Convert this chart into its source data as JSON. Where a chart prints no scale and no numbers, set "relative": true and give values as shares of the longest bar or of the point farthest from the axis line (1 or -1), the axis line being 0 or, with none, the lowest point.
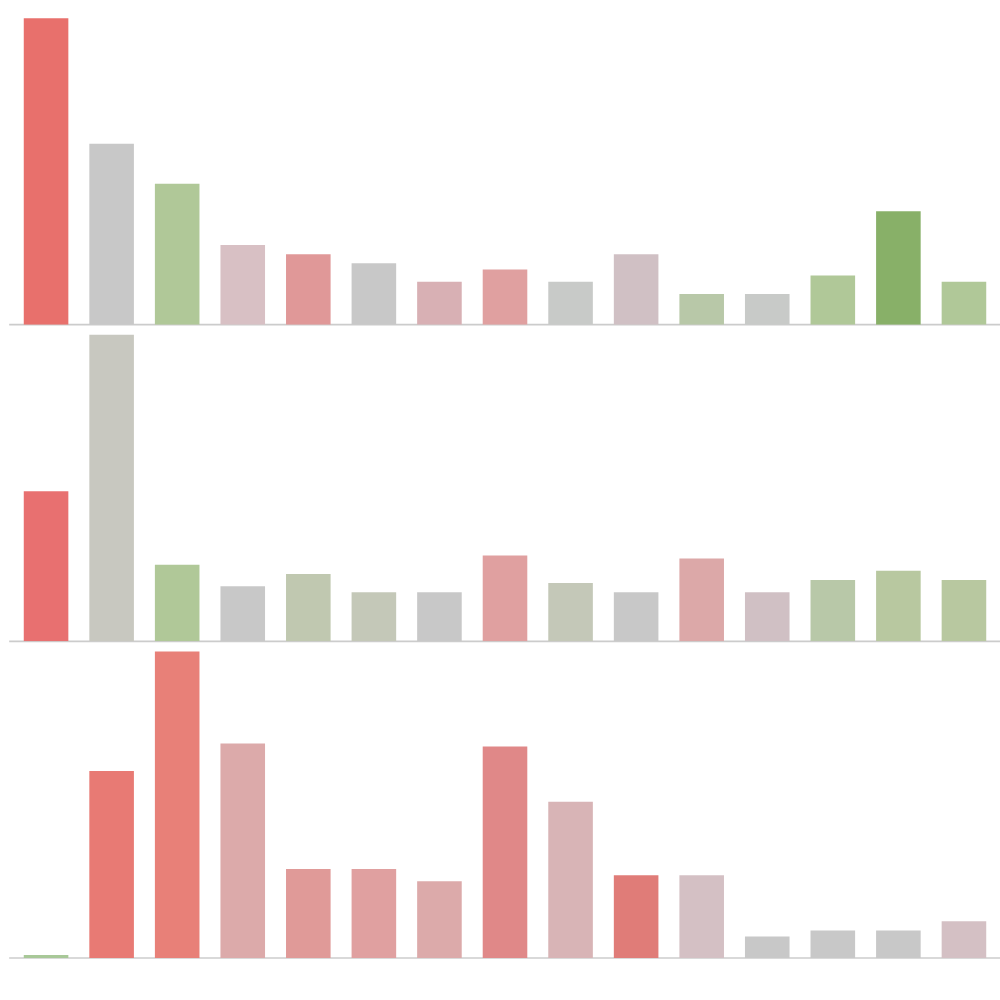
{
  "chart_data": [
    {
      "type": "bar",
      "relative": true,
      "categories": [
        null,
        null,
        null,
        null,
        null,
        null,
        null,
        null,
        null,
        null,
        null,
        null,
        null,
        null,
        null
      ],
      "values": [
        1,
        0.59,
        0.46,
        0.26,
        0.23,
        0.2,
        0.14,
        0.18,
        0.14,
        0.23,
        0.1,
        0.1,
        0.16,
        0.37,
        0.14
      ],
      "colors": [
        "#e8706c",
        "#c8c8c8",
        "#b0c898",
        "#d8c0c4",
        "#e09898",
        "#c8c8c8",
        "#d8b0b4",
        "#e0a0a0",
        "#c8cac8",
        "#d0c0c4",
        "#b8c8a8",
        "#c8cac8",
        "#b0c898",
        "#88b068",
        "#b0c898"
      ]
    },
    {
      "type": "bar",
      "relative": true,
      "categories": [
        null,
        null,
        null,
        null,
        null,
        null,
        null,
        null,
        null,
        null,
        null,
        null,
        null,
        null,
        null
      ],
      "values": [
        0.49,
        1,
        0.25,
        0.18,
        0.22,
        0.16,
        0.16,
        0.28,
        0.19,
        0.16,
        0.27,
        0.16,
        0.2,
        0.23,
        0.2
      ],
      "colors": [
        "#e87070",
        "#c8c8c0",
        "#b0c898",
        "#c8c8c8",
        "#c0c8b0",
        "#c4c8b8",
        "#c8c8c8",
        "#e0a0a0",
        "#c4c8b8",
        "#c8c8c8",
        "#dca8a8",
        "#d0c0c4",
        "#b8c8a8",
        "#b8c8a0",
        "#b8c8a0"
      ]
    },
    {
      "type": "bar",
      "relative": true,
      "categories": [
        null,
        null,
        null,
        null,
        null,
        null,
        null,
        null,
        null,
        null,
        null,
        null,
        null,
        null,
        null
      ],
      "values": [
        0.01,
        0.61,
        1,
        0.7,
        0.29,
        0.29,
        0.25,
        0.69,
        0.51,
        0.27,
        0.27,
        0.07,
        0.09,
        0.09,
        0.12
      ],
      "colors": [
        "#a8c898",
        "#e87a74",
        "#e88078",
        "#dcaaaa",
        "#e09a98",
        "#e0a0a0",
        "#dcaaaa",
        "#e08888",
        "#d8b4b6",
        "#e07c78",
        "#d4c0c4",
        "#c8c8c8",
        "#c8c8c8",
        "#c8c8c8",
        "#d4c0c4"
      ]
    }
  ]
}
